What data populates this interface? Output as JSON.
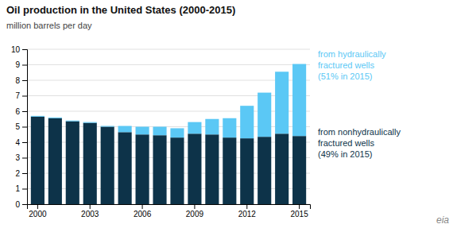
{
  "chart_data": {
    "type": "bar",
    "title": "Oil production in the United States (2000-2015)",
    "subtitle": "million barrels per day",
    "categories": [
      "2000",
      null,
      null,
      "2003",
      null,
      null,
      "2006",
      null,
      null,
      "2009",
      null,
      null,
      "2012",
      null,
      null,
      "2015"
    ],
    "series": [
      {
        "name": "from nonhydraulically\nfractured wells\n(49% in 2015)",
        "color": "#0d3349",
        "values": [
          5.65,
          5.55,
          5.35,
          5.25,
          5.0,
          4.65,
          4.5,
          4.45,
          4.3,
          4.55,
          4.5,
          4.3,
          4.25,
          4.35,
          4.55,
          4.4
        ]
      },
      {
        "name": "from hydraulically\nfractured wells\n(51% in 2015)",
        "color": "#5bc8f5",
        "values": [
          0.05,
          0.05,
          0.05,
          0.05,
          0.05,
          0.4,
          0.5,
          0.55,
          0.6,
          0.75,
          1.0,
          1.25,
          2.1,
          2.85,
          4.0,
          4.65
        ]
      }
    ],
    "stacked": true,
    "ylim": [
      0,
      10
    ],
    "yticks": [
      0,
      1,
      2,
      3,
      4,
      5,
      6,
      7,
      8,
      9,
      10
    ],
    "grid": true,
    "legend": "right",
    "annotations": [
      {
        "text": "eia"
      }
    ]
  }
}
